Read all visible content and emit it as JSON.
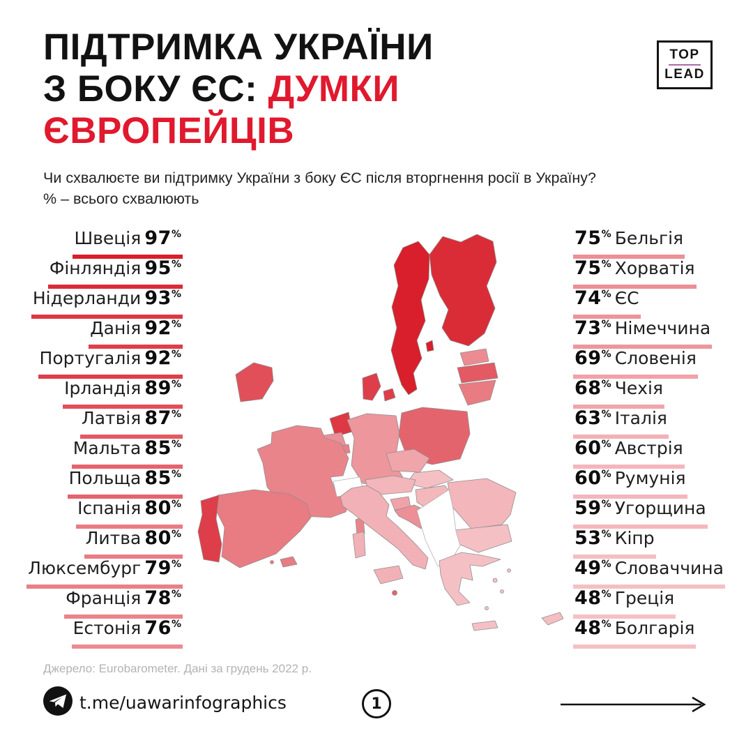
{
  "title": {
    "line1_black": "ПІДТРИМКА УКРАЇНИ",
    "line2_black": "З БОКУ ЄС: ",
    "line2_red": "ДУМКИ",
    "line3_red": "ЄВРОПЕЙЦІВ"
  },
  "logo": {
    "top": "TOP",
    "lead": "LEAD"
  },
  "subtitle": {
    "line1": "Чи схвалюєте ви підтримку України з боку ЄС після вторгнення росії в Україну?",
    "line2": "% – всього схвалюють"
  },
  "left_list": [
    {
      "name": "Швеція",
      "pct": 97
    },
    {
      "name": "Фінляндія",
      "pct": 95
    },
    {
      "name": "Нідерланди",
      "pct": 93
    },
    {
      "name": "Данія",
      "pct": 92
    },
    {
      "name": "Португалія",
      "pct": 92
    },
    {
      "name": "Ірландія",
      "pct": 89
    },
    {
      "name": "Латвія",
      "pct": 87
    },
    {
      "name": "Мальта",
      "pct": 85
    },
    {
      "name": "Польща",
      "pct": 85
    },
    {
      "name": "Іспанія",
      "pct": 80
    },
    {
      "name": "Литва",
      "pct": 80
    },
    {
      "name": "Люксембург",
      "pct": 79
    },
    {
      "name": "Франція",
      "pct": 78
    },
    {
      "name": "Естонія",
      "pct": 76
    }
  ],
  "right_list": [
    {
      "name": "Бельгія",
      "pct": 75
    },
    {
      "name": "Хорватія",
      "pct": 75
    },
    {
      "name": "ЄС",
      "pct": 74
    },
    {
      "name": "Німеччина",
      "pct": 73
    },
    {
      "name": "Словенія",
      "pct": 69
    },
    {
      "name": "Чехія",
      "pct": 68
    },
    {
      "name": "Італія",
      "pct": 63
    },
    {
      "name": "Австрія",
      "pct": 60
    },
    {
      "name": "Румунія",
      "pct": 60
    },
    {
      "name": "Угорщина",
      "pct": 59
    },
    {
      "name": "Кіпр",
      "pct": 53
    },
    {
      "name": "Словаччина",
      "pct": 49
    },
    {
      "name": "Греція",
      "pct": 48
    },
    {
      "name": "Болгарія",
      "pct": 48
    }
  ],
  "chart_data": {
    "type": "table",
    "title": "Підтримка України з боку ЄС: думки європейців",
    "unit": "% — всього схвалюють",
    "map_type": "choropleth of EU members, darker red = higher approval",
    "categories": [
      "Швеція",
      "Фінляндія",
      "Нідерланди",
      "Данія",
      "Португалія",
      "Ірландія",
      "Латвія",
      "Мальта",
      "Польща",
      "Іспанія",
      "Литва",
      "Люксембург",
      "Франція",
      "Естонія",
      "Бельгія",
      "Хорватія",
      "ЄС",
      "Німеччина",
      "Словенія",
      "Чехія",
      "Італія",
      "Австрія",
      "Румунія",
      "Угорщина",
      "Кіпр",
      "Словаччина",
      "Греція",
      "Болгарія"
    ],
    "values": [
      97,
      95,
      93,
      92,
      92,
      89,
      87,
      85,
      85,
      80,
      80,
      79,
      78,
      76,
      75,
      75,
      74,
      73,
      69,
      68,
      63,
      60,
      60,
      59,
      53,
      49,
      48,
      48
    ]
  },
  "scale": {
    "min_pct": 48,
    "max_pct": 97,
    "gamma": 2,
    "min_color": "#f5c0c4",
    "max_color": "#d81f2b"
  },
  "colors": {
    "accent_red": "#e0192e",
    "logo_line": "#b06aa8",
    "map_border": "#8f8f8f"
  },
  "map": {
    "values": {
      "sweden": 97,
      "finland": 95,
      "netherlands": 93,
      "denmark": 92,
      "portugal": 92,
      "ireland": 89,
      "latvia": 87,
      "malta": 85,
      "poland": 85,
      "spain": 80,
      "lithuania": 80,
      "luxembourg": 79,
      "france": 78,
      "estonia": 76,
      "belgium": 75,
      "croatia": 75,
      "germany": 73,
      "slovenia": 69,
      "czechia": 68,
      "italy": 63,
      "austria": 60,
      "romania": 60,
      "hungary": 59,
      "cyprus": 53,
      "slovakia": 49,
      "greece": 48,
      "bulgaria": 48
    }
  },
  "source": "Джерело: Eurobarometer. Дані за грудень 2022 р.",
  "footer": {
    "telegram_url": "t.me/uawarinfographics",
    "page_number": "1"
  }
}
